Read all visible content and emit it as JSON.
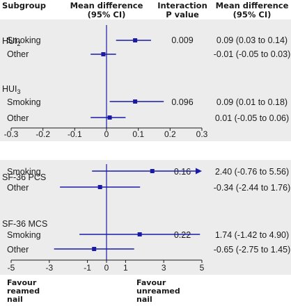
{
  "headers": {
    "subgroup": "Subgroup",
    "mean_diff": [
      "Mean difference",
      "(95% CI)"
    ],
    "interaction": [
      "Interaction",
      "P value"
    ],
    "mean_diff_right": [
      "Mean difference",
      "(95% CI)"
    ]
  },
  "colors": {
    "panel_bg": "#ececec",
    "marker": "#1a1aa6",
    "line": "#1a1aa6",
    "axis": "#1a1a1a",
    "text": "#1a1a1a"
  },
  "chart_data": [
    {
      "type": "forest",
      "xlim": [
        -0.3,
        0.3
      ],
      "ticks": [
        "-0.3",
        "-0.2",
        "-0.1",
        "0",
        "0.1",
        "0.2",
        "0.3"
      ],
      "groups": [
        {
          "name": "HUI",
          "name_sub": "2",
          "p_value": "0.009",
          "rows": [
            {
              "label": "Smoking",
              "mean": 0.09,
              "lo": 0.03,
              "hi": 0.14,
              "ci_text": "0.09 (0.03 to 0.14)"
            },
            {
              "label": "Other",
              "mean": -0.01,
              "lo": -0.05,
              "hi": 0.03,
              "ci_text": "-0.01 (-0.05 to 0.03)"
            }
          ]
        },
        {
          "name": "HUI",
          "name_sub": "3",
          "p_value": "0.096",
          "rows": [
            {
              "label": "Smoking",
              "mean": 0.09,
              "lo": 0.01,
              "hi": 0.18,
              "ci_text": "0.09 (0.01 to 0.18)"
            },
            {
              "label": "Other",
              "mean": 0.01,
              "lo": -0.05,
              "hi": 0.06,
              "ci_text": "0.01 (-0.05 to 0.06)"
            }
          ]
        }
      ]
    },
    {
      "type": "forest",
      "xlim": [
        -5,
        5
      ],
      "ticks": [
        "-5",
        "-3",
        "-1",
        "0",
        "1",
        "3",
        "5"
      ],
      "favour_left": [
        "Favour",
        "reamed",
        "nail"
      ],
      "favour_right": [
        "Favour",
        "unreamed",
        "nail"
      ],
      "groups": [
        {
          "name": "SF-36 PCS",
          "name_sub": "",
          "p_value": "0.16",
          "rows": [
            {
              "label": "Smoking",
              "mean": 2.4,
              "lo": -0.76,
              "hi": 5.56,
              "ci_text": "2.40 (-0.76 to 5.56)"
            },
            {
              "label": "Other",
              "mean": -0.34,
              "lo": -2.44,
              "hi": 1.76,
              "ci_text": "-0.34 (-2.44 to 1.76)"
            }
          ]
        },
        {
          "name": "SF-36 MCS",
          "name_sub": "",
          "p_value": "0.22",
          "rows": [
            {
              "label": "Smoking",
              "mean": 1.74,
              "lo": -1.42,
              "hi": 4.9,
              "ci_text": "1.74 (-1.42 to 4.90)"
            },
            {
              "label": "Other",
              "mean": -0.65,
              "lo": -2.75,
              "hi": 1.45,
              "ci_text": "-0.65 (-2.75 to 1.45)"
            }
          ]
        }
      ]
    }
  ]
}
